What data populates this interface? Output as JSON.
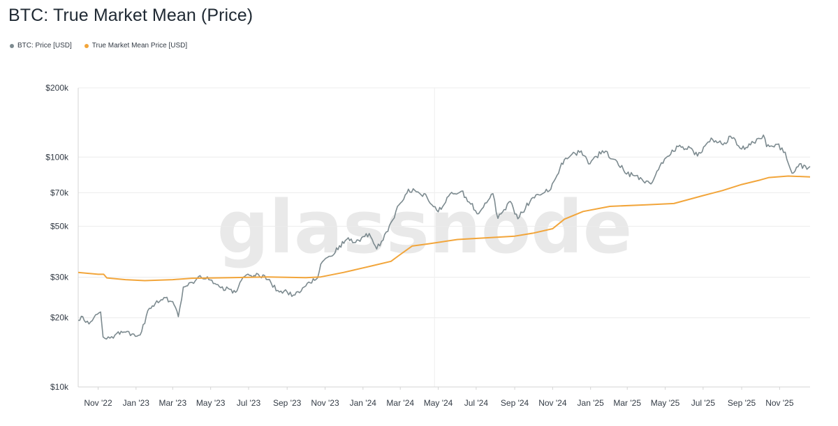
{
  "header": {
    "title": "BTC: True Market Mean (Price)"
  },
  "legend": [
    {
      "label": "BTC: Price [USD]",
      "color": "#7c8a8f"
    },
    {
      "label": "True Market Mean Price [USD]",
      "color": "#f2a53a"
    }
  ],
  "watermark": "glassnode",
  "chart_data": {
    "type": "line",
    "title": "BTC: True Market Mean (Price)",
    "xlabel": "",
    "ylabel": "",
    "y_scale": "log",
    "ylim": [
      10000,
      200000
    ],
    "xlim": [
      "2022-09-30",
      "2025-12-20"
    ],
    "grid": true,
    "legend_position": "top-left",
    "y_ticks": [
      {
        "value": 10000,
        "label": "$10k"
      },
      {
        "value": 20000,
        "label": "$20k"
      },
      {
        "value": 30000,
        "label": "$30k"
      },
      {
        "value": 50000,
        "label": "$50k"
      },
      {
        "value": 70000,
        "label": "$70k"
      },
      {
        "value": 100000,
        "label": "$100k"
      },
      {
        "value": 200000,
        "label": "$200k"
      }
    ],
    "x_ticks": [
      {
        "date": "2022-11-01",
        "label": "Nov '22"
      },
      {
        "date": "2023-01-01",
        "label": "Jan '23"
      },
      {
        "date": "2023-03-01",
        "label": "Mar '23"
      },
      {
        "date": "2023-05-01",
        "label": "May '23"
      },
      {
        "date": "2023-07-01",
        "label": "Jul '23"
      },
      {
        "date": "2023-09-01",
        "label": "Sep '23"
      },
      {
        "date": "2023-11-01",
        "label": "Nov '23"
      },
      {
        "date": "2024-01-01",
        "label": "Jan '24"
      },
      {
        "date": "2024-03-01",
        "label": "Mar '24"
      },
      {
        "date": "2024-05-01",
        "label": "May '24"
      },
      {
        "date": "2024-07-01",
        "label": "Jul '24"
      },
      {
        "date": "2024-09-01",
        "label": "Sep '24"
      },
      {
        "date": "2024-11-01",
        "label": "Nov '24"
      },
      {
        "date": "2025-01-01",
        "label": "Jan '25"
      },
      {
        "date": "2025-03-01",
        "label": "Mar '25"
      },
      {
        "date": "2025-05-01",
        "label": "May '25"
      },
      {
        "date": "2025-07-01",
        "label": "Jul '25"
      },
      {
        "date": "2025-09-01",
        "label": "Sep '25"
      },
      {
        "date": "2025-11-01",
        "label": "Nov '25"
      }
    ],
    "series": [
      {
        "name": "BTC: Price [USD]",
        "color": "#7c8a8f",
        "points": [
          [
            "2022-09-30",
            19500
          ],
          [
            "2022-10-05",
            20300
          ],
          [
            "2022-10-12",
            19100
          ],
          [
            "2022-10-20",
            19200
          ],
          [
            "2022-10-28",
            20600
          ],
          [
            "2022-11-05",
            21200
          ],
          [
            "2022-11-09",
            16500
          ],
          [
            "2022-11-20",
            16300
          ],
          [
            "2022-12-01",
            17100
          ],
          [
            "2022-12-15",
            17300
          ],
          [
            "2022-12-31",
            16600
          ],
          [
            "2023-01-10",
            17400
          ],
          [
            "2023-01-20",
            21500
          ],
          [
            "2023-02-01",
            23100
          ],
          [
            "2023-02-15",
            24500
          ],
          [
            "2023-03-01",
            23500
          ],
          [
            "2023-03-10",
            20200
          ],
          [
            "2023-03-18",
            27200
          ],
          [
            "2023-04-01",
            28500
          ],
          [
            "2023-04-14",
            30500
          ],
          [
            "2023-04-28",
            29300
          ],
          [
            "2023-05-15",
            27300
          ],
          [
            "2023-06-10",
            25800
          ],
          [
            "2023-06-22",
            30000
          ],
          [
            "2023-07-05",
            30500
          ],
          [
            "2023-07-14",
            31200
          ],
          [
            "2023-08-01",
            29300
          ],
          [
            "2023-08-17",
            26300
          ],
          [
            "2023-09-01",
            25900
          ],
          [
            "2023-09-11",
            25100
          ],
          [
            "2023-10-01",
            27500
          ],
          [
            "2023-10-20",
            29800
          ],
          [
            "2023-10-25",
            34200
          ],
          [
            "2023-11-10",
            37000
          ],
          [
            "2023-12-06",
            43900
          ],
          [
            "2023-12-20",
            42500
          ],
          [
            "2024-01-11",
            46500
          ],
          [
            "2024-01-23",
            39800
          ],
          [
            "2024-02-10",
            47500
          ],
          [
            "2024-02-28",
            62000
          ],
          [
            "2024-03-14",
            72500
          ],
          [
            "2024-04-01",
            69600
          ],
          [
            "2024-04-13",
            66800
          ],
          [
            "2024-05-01",
            57800
          ],
          [
            "2024-05-20",
            69100
          ],
          [
            "2024-06-07",
            71000
          ],
          [
            "2024-07-05",
            56700
          ],
          [
            "2024-07-28",
            69300
          ],
          [
            "2024-08-05",
            54100
          ],
          [
            "2024-08-25",
            64100
          ],
          [
            "2024-09-06",
            53900
          ],
          [
            "2024-09-28",
            66000
          ],
          [
            "2024-10-29",
            72400
          ],
          [
            "2024-11-13",
            90000
          ],
          [
            "2024-11-22",
            98900
          ],
          [
            "2024-12-17",
            106400
          ],
          [
            "2024-12-31",
            93400
          ],
          [
            "2025-01-20",
            106500
          ],
          [
            "2025-02-10",
            97400
          ],
          [
            "2025-02-28",
            84300
          ],
          [
            "2025-03-15",
            83000
          ],
          [
            "2025-04-08",
            76400
          ],
          [
            "2025-04-25",
            94500
          ],
          [
            "2025-05-22",
            111000
          ],
          [
            "2025-06-10",
            109700
          ],
          [
            "2025-06-22",
            101000
          ],
          [
            "2025-07-14",
            121000
          ],
          [
            "2025-08-02",
            113000
          ],
          [
            "2025-08-14",
            123300
          ],
          [
            "2025-09-01",
            108300
          ],
          [
            "2025-09-20",
            115700
          ],
          [
            "2025-10-06",
            124700
          ],
          [
            "2025-10-11",
            111000
          ],
          [
            "2025-10-28",
            113600
          ],
          [
            "2025-11-10",
            105000
          ],
          [
            "2025-11-21",
            85000
          ],
          [
            "2025-12-03",
            93400
          ],
          [
            "2025-12-15",
            88500
          ],
          [
            "2025-12-20",
            91000
          ]
        ]
      },
      {
        "name": "True Market Mean Price [USD]",
        "color": "#f2a53a",
        "points": [
          [
            "2022-09-30",
            31500
          ],
          [
            "2022-11-01",
            30900
          ],
          [
            "2022-11-10",
            30900
          ],
          [
            "2022-11-15",
            29800
          ],
          [
            "2022-12-15",
            29300
          ],
          [
            "2023-01-15",
            29000
          ],
          [
            "2023-03-01",
            29300
          ],
          [
            "2023-04-01",
            29700
          ],
          [
            "2023-06-01",
            29900
          ],
          [
            "2023-08-01",
            30100
          ],
          [
            "2023-10-01",
            29900
          ],
          [
            "2023-10-25",
            30100
          ],
          [
            "2023-12-01",
            31500
          ],
          [
            "2024-01-15",
            33600
          ],
          [
            "2024-02-15",
            35200
          ],
          [
            "2024-03-01",
            37700
          ],
          [
            "2024-03-20",
            41000
          ],
          [
            "2024-04-15",
            41900
          ],
          [
            "2024-06-01",
            43800
          ],
          [
            "2024-07-15",
            44500
          ],
          [
            "2024-09-01",
            45300
          ],
          [
            "2024-10-01",
            46700
          ],
          [
            "2024-11-01",
            48800
          ],
          [
            "2024-11-20",
            53700
          ],
          [
            "2024-12-20",
            58000
          ],
          [
            "2025-02-01",
            61000
          ],
          [
            "2025-04-01",
            62000
          ],
          [
            "2025-05-15",
            62800
          ],
          [
            "2025-07-01",
            68000
          ],
          [
            "2025-08-01",
            71500
          ],
          [
            "2025-09-01",
            76000
          ],
          [
            "2025-10-01",
            79500
          ],
          [
            "2025-10-15",
            81500
          ],
          [
            "2025-11-15",
            82700
          ],
          [
            "2025-12-20",
            82000
          ]
        ]
      }
    ]
  }
}
